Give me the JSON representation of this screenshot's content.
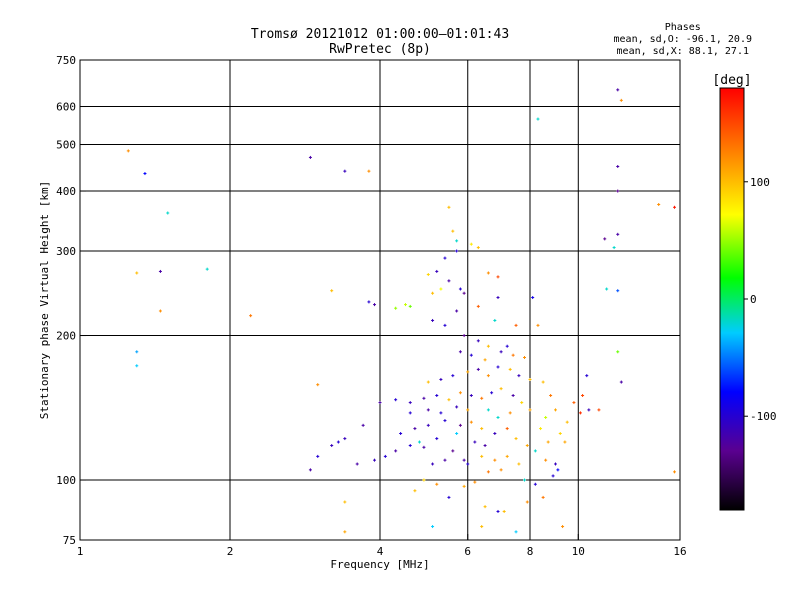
{
  "chart_data": {
    "type": "scatter",
    "title": "Tromsø 20121012 01:00:00–01:01:43",
    "subtitle": "RwPretec (8p)",
    "stats_header": "Phases",
    "stats_o": "mean, sd,O: -96.1, 20.9",
    "stats_x": "mean, sd,X:  88.1, 27.1",
    "xlabel": "Frequency [MHz]",
    "ylabel": "Stationary phase Virtual Height [km]",
    "x_scale": "log",
    "y_scale": "log",
    "xlim": [
      1,
      16
    ],
    "ylim": [
      75,
      750
    ],
    "x_ticks": [
      {
        "value": 1,
        "label": "1"
      },
      {
        "value": 2,
        "label": "2"
      },
      {
        "value": 4,
        "label": "4"
      },
      {
        "value": 6,
        "label": "6"
      },
      {
        "value": 8,
        "label": "8"
      },
      {
        "value": 10,
        "label": "10"
      },
      {
        "value": 16,
        "label": "16"
      }
    ],
    "x_grid": [
      2,
      4,
      6,
      8,
      10
    ],
    "y_ticks": [
      {
        "value": 75,
        "label": "75"
      },
      {
        "value": 100,
        "label": "100"
      },
      {
        "value": 200,
        "label": "200"
      },
      {
        "value": 300,
        "label": "300"
      },
      {
        "value": 400,
        "label": "400"
      },
      {
        "value": 500,
        "label": "500"
      },
      {
        "value": 600,
        "label": "600"
      },
      {
        "value": 750,
        "label": "750"
      }
    ],
    "colorbar": {
      "label": "[deg]",
      "range": [
        -180,
        180
      ],
      "ticks": [
        {
          "value": 100,
          "label": "100"
        },
        {
          "value": 0,
          "label": "0"
        },
        {
          "value": -100,
          "label": "-100"
        }
      ]
    },
    "points": [
      {
        "x": 1.25,
        "y": 485,
        "p": 120
      },
      {
        "x": 1.35,
        "y": 435,
        "p": -80
      },
      {
        "x": 1.5,
        "y": 360,
        "p": -20
      },
      {
        "x": 1.3,
        "y": 270,
        "p": 100
      },
      {
        "x": 1.45,
        "y": 272,
        "p": -120
      },
      {
        "x": 1.8,
        "y": 275,
        "p": -20
      },
      {
        "x": 1.45,
        "y": 225,
        "p": 120
      },
      {
        "x": 2.2,
        "y": 220,
        "p": 130
      },
      {
        "x": 1.3,
        "y": 185,
        "p": -40
      },
      {
        "x": 1.3,
        "y": 173,
        "p": -30
      },
      {
        "x": 2.9,
        "y": 470,
        "p": -120
      },
      {
        "x": 3.4,
        "y": 440,
        "p": -110
      },
      {
        "x": 3.8,
        "y": 440,
        "p": 120
      },
      {
        "x": 3.2,
        "y": 248,
        "p": 100
      },
      {
        "x": 3.0,
        "y": 158,
        "p": 120
      },
      {
        "x": 3.8,
        "y": 235,
        "p": -100
      },
      {
        "x": 3.9,
        "y": 232,
        "p": -120
      },
      {
        "x": 4.3,
        "y": 228,
        "p": 50
      },
      {
        "x": 4.5,
        "y": 232,
        "p": 60
      },
      {
        "x": 4.6,
        "y": 230,
        "p": 40
      },
      {
        "x": 5.0,
        "y": 268,
        "p": 90
      },
      {
        "x": 5.2,
        "y": 272,
        "p": -110
      },
      {
        "x": 5.5,
        "y": 260,
        "p": -120
      },
      {
        "x": 5.8,
        "y": 250,
        "p": -100
      },
      {
        "x": 5.9,
        "y": 245,
        "p": -130
      },
      {
        "x": 5.5,
        "y": 370,
        "p": 100
      },
      {
        "x": 5.6,
        "y": 330,
        "p": 100
      },
      {
        "x": 5.7,
        "y": 315,
        "p": -20
      },
      {
        "x": 5.7,
        "y": 300,
        "p": -100
      },
      {
        "x": 6.1,
        "y": 310,
        "p": 80
      },
      {
        "x": 6.3,
        "y": 305,
        "p": 100
      },
      {
        "x": 6.6,
        "y": 270,
        "p": 120
      },
      {
        "x": 6.9,
        "y": 265,
        "p": 150
      },
      {
        "x": 6.9,
        "y": 240,
        "p": -110
      },
      {
        "x": 6.3,
        "y": 230,
        "p": 140
      },
      {
        "x": 5.4,
        "y": 290,
        "p": -100
      },
      {
        "x": 5.3,
        "y": 250,
        "p": 70
      },
      {
        "x": 5.1,
        "y": 245,
        "p": 100
      },
      {
        "x": 5.7,
        "y": 225,
        "p": -120
      },
      {
        "x": 5.1,
        "y": 215,
        "p": -110
      },
      {
        "x": 5.4,
        "y": 210,
        "p": -100
      },
      {
        "x": 5.9,
        "y": 200,
        "p": -130
      },
      {
        "x": 6.3,
        "y": 195,
        "p": -110
      },
      {
        "x": 6.6,
        "y": 190,
        "p": 100
      },
      {
        "x": 7.2,
        "y": 190,
        "p": -100
      },
      {
        "x": 6.8,
        "y": 215,
        "p": -20
      },
      {
        "x": 7.5,
        "y": 210,
        "p": 140
      },
      {
        "x": 7.8,
        "y": 180,
        "p": 120
      },
      {
        "x": 8.3,
        "y": 210,
        "p": 120
      },
      {
        "x": 8.1,
        "y": 240,
        "p": -90
      },
      {
        "x": 8.5,
        "y": 160,
        "p": 100
      },
      {
        "x": 8.8,
        "y": 150,
        "p": 130
      },
      {
        "x": 9.0,
        "y": 140,
        "p": 110
      },
      {
        "x": 9.2,
        "y": 125,
        "p": 90
      },
      {
        "x": 9.5,
        "y": 132,
        "p": 100
      },
      {
        "x": 9.8,
        "y": 145,
        "p": 140
      },
      {
        "x": 10.2,
        "y": 150,
        "p": 150
      },
      {
        "x": 10.4,
        "y": 165,
        "p": -100
      },
      {
        "x": 8.4,
        "y": 128,
        "p": 80
      },
      {
        "x": 8.7,
        "y": 120,
        "p": 110
      },
      {
        "x": 9.0,
        "y": 108,
        "p": -110
      },
      {
        "x": 9.1,
        "y": 105,
        "p": -80
      },
      {
        "x": 8.9,
        "y": 102,
        "p": -100
      },
      {
        "x": 8.2,
        "y": 98,
        "p": -100
      },
      {
        "x": 7.8,
        "y": 100,
        "p": -20
      },
      {
        "x": 7.9,
        "y": 90,
        "p": 120
      },
      {
        "x": 8.5,
        "y": 92,
        "p": 130
      },
      {
        "x": 7.1,
        "y": 86,
        "p": 100
      },
      {
        "x": 7.5,
        "y": 78,
        "p": -30
      },
      {
        "x": 9.3,
        "y": 80,
        "p": 120
      },
      {
        "x": 10.5,
        "y": 140,
        "p": -110
      },
      {
        "x": 10.1,
        "y": 138,
        "p": 160
      },
      {
        "x": 6.9,
        "y": 86,
        "p": -100
      },
      {
        "x": 6.5,
        "y": 88,
        "p": 100
      },
      {
        "x": 5.5,
        "y": 92,
        "p": -100
      },
      {
        "x": 5.2,
        "y": 98,
        "p": 120
      },
      {
        "x": 4.7,
        "y": 95,
        "p": 100
      },
      {
        "x": 4.9,
        "y": 100,
        "p": 90
      },
      {
        "x": 5.9,
        "y": 97,
        "p": 110
      },
      {
        "x": 6.2,
        "y": 99,
        "p": 120
      },
      {
        "x": 5.1,
        "y": 80,
        "p": -30
      },
      {
        "x": 3.4,
        "y": 90,
        "p": 100
      },
      {
        "x": 3.4,
        "y": 78,
        "p": 110
      },
      {
        "x": 6.4,
        "y": 80,
        "p": 100
      },
      {
        "x": 12.0,
        "y": 650,
        "p": -120
      },
      {
        "x": 12.2,
        "y": 618,
        "p": 120
      },
      {
        "x": 8.3,
        "y": 565,
        "p": -20
      },
      {
        "x": 12.0,
        "y": 450,
        "p": -120
      },
      {
        "x": 12.0,
        "y": 400,
        "p": -130
      },
      {
        "x": 14.5,
        "y": 375,
        "p": 120
      },
      {
        "x": 15.6,
        "y": 370,
        "p": 170
      },
      {
        "x": 12.0,
        "y": 325,
        "p": -120
      },
      {
        "x": 11.3,
        "y": 318,
        "p": -130
      },
      {
        "x": 11.8,
        "y": 305,
        "p": -20
      },
      {
        "x": 11.4,
        "y": 250,
        "p": -20
      },
      {
        "x": 12.0,
        "y": 248,
        "p": -60
      },
      {
        "x": 12.0,
        "y": 185,
        "p": 40
      },
      {
        "x": 12.2,
        "y": 160,
        "p": -120
      },
      {
        "x": 11.0,
        "y": 140,
        "p": 150
      },
      {
        "x": 15.6,
        "y": 104,
        "p": 120
      },
      {
        "x": 4.3,
        "y": 115,
        "p": -120
      },
      {
        "x": 4.6,
        "y": 118,
        "p": -100
      },
      {
        "x": 4.9,
        "y": 117,
        "p": -120
      },
      {
        "x": 5.2,
        "y": 122,
        "p": -100
      },
      {
        "x": 5.6,
        "y": 115,
        "p": -130
      },
      {
        "x": 5.9,
        "y": 110,
        "p": -120
      },
      {
        "x": 6.2,
        "y": 120,
        "p": -110
      },
      {
        "x": 6.5,
        "y": 118,
        "p": -120
      },
      {
        "x": 3.9,
        "y": 110,
        "p": -110
      },
      {
        "x": 4.1,
        "y": 112,
        "p": -100
      },
      {
        "x": 3.6,
        "y": 108,
        "p": -120
      },
      {
        "x": 3.7,
        "y": 130,
        "p": -120
      },
      {
        "x": 3.2,
        "y": 118,
        "p": -110
      },
      {
        "x": 3.0,
        "y": 112,
        "p": -100
      },
      {
        "x": 2.9,
        "y": 105,
        "p": -120
      },
      {
        "x": 3.4,
        "y": 122,
        "p": -110
      },
      {
        "x": 3.3,
        "y": 120,
        "p": -100
      },
      {
        "x": 4.4,
        "y": 125,
        "p": -100
      },
      {
        "x": 4.7,
        "y": 128,
        "p": -120
      },
      {
        "x": 5.0,
        "y": 130,
        "p": -110
      },
      {
        "x": 5.4,
        "y": 133,
        "p": -100
      },
      {
        "x": 5.8,
        "y": 130,
        "p": -130
      },
      {
        "x": 6.1,
        "y": 132,
        "p": 120
      },
      {
        "x": 6.4,
        "y": 128,
        "p": 100
      },
      {
        "x": 6.8,
        "y": 125,
        "p": -110
      },
      {
        "x": 7.2,
        "y": 128,
        "p": 140
      },
      {
        "x": 7.5,
        "y": 122,
        "p": 100
      },
      {
        "x": 7.9,
        "y": 118,
        "p": 110
      },
      {
        "x": 8.2,
        "y": 115,
        "p": -20
      },
      {
        "x": 4.0,
        "y": 145,
        "p": -120
      },
      {
        "x": 4.3,
        "y": 147,
        "p": -100
      },
      {
        "x": 4.6,
        "y": 145,
        "p": -110
      },
      {
        "x": 4.9,
        "y": 148,
        "p": -120
      },
      {
        "x": 5.2,
        "y": 150,
        "p": -100
      },
      {
        "x": 5.5,
        "y": 147,
        "p": 100
      },
      {
        "x": 5.8,
        "y": 152,
        "p": 120
      },
      {
        "x": 6.1,
        "y": 150,
        "p": -110
      },
      {
        "x": 6.4,
        "y": 148,
        "p": 130
      },
      {
        "x": 6.7,
        "y": 152,
        "p": -100
      },
      {
        "x": 7.0,
        "y": 155,
        "p": 100
      },
      {
        "x": 7.4,
        "y": 150,
        "p": -120
      },
      {
        "x": 7.7,
        "y": 145,
        "p": 90
      },
      {
        "x": 8.0,
        "y": 140,
        "p": 110
      },
      {
        "x": 4.6,
        "y": 138,
        "p": -100
      },
      {
        "x": 5.0,
        "y": 140,
        "p": -120
      },
      {
        "x": 5.3,
        "y": 138,
        "p": -100
      },
      {
        "x": 5.7,
        "y": 142,
        "p": -110
      },
      {
        "x": 6.0,
        "y": 140,
        "p": 110
      },
      {
        "x": 6.6,
        "y": 140,
        "p": -20
      },
      {
        "x": 7.3,
        "y": 138,
        "p": 120
      },
      {
        "x": 5.0,
        "y": 160,
        "p": 100
      },
      {
        "x": 5.3,
        "y": 162,
        "p": -110
      },
      {
        "x": 5.6,
        "y": 165,
        "p": -100
      },
      {
        "x": 6.0,
        "y": 168,
        "p": 110
      },
      {
        "x": 6.3,
        "y": 170,
        "p": -120
      },
      {
        "x": 6.6,
        "y": 165,
        "p": 120
      },
      {
        "x": 6.9,
        "y": 172,
        "p": -100
      },
      {
        "x": 7.3,
        "y": 170,
        "p": 100
      },
      {
        "x": 7.6,
        "y": 165,
        "p": -110
      },
      {
        "x": 8.0,
        "y": 162,
        "p": 100
      },
      {
        "x": 5.8,
        "y": 185,
        "p": -120
      },
      {
        "x": 6.1,
        "y": 182,
        "p": -100
      },
      {
        "x": 6.5,
        "y": 178,
        "p": 110
      },
      {
        "x": 7.0,
        "y": 185,
        "p": -110
      },
      {
        "x": 7.4,
        "y": 182,
        "p": 130
      },
      {
        "x": 5.1,
        "y": 108,
        "p": -110
      },
      {
        "x": 5.4,
        "y": 110,
        "p": -120
      },
      {
        "x": 6.0,
        "y": 108,
        "p": -100
      },
      {
        "x": 6.4,
        "y": 112,
        "p": 100
      },
      {
        "x": 6.8,
        "y": 110,
        "p": 120
      },
      {
        "x": 7.2,
        "y": 112,
        "p": 110
      },
      {
        "x": 7.6,
        "y": 108,
        "p": 100
      },
      {
        "x": 8.6,
        "y": 110,
        "p": 120
      },
      {
        "x": 9.4,
        "y": 120,
        "p": 110
      },
      {
        "x": 7.0,
        "y": 105,
        "p": 120
      },
      {
        "x": 6.6,
        "y": 104,
        "p": 130
      },
      {
        "x": 4.8,
        "y": 120,
        "p": -20
      },
      {
        "x": 5.7,
        "y": 125,
        "p": -30
      },
      {
        "x": 6.9,
        "y": 135,
        "p": -20
      },
      {
        "x": 8.6,
        "y": 135,
        "p": 60
      }
    ]
  }
}
